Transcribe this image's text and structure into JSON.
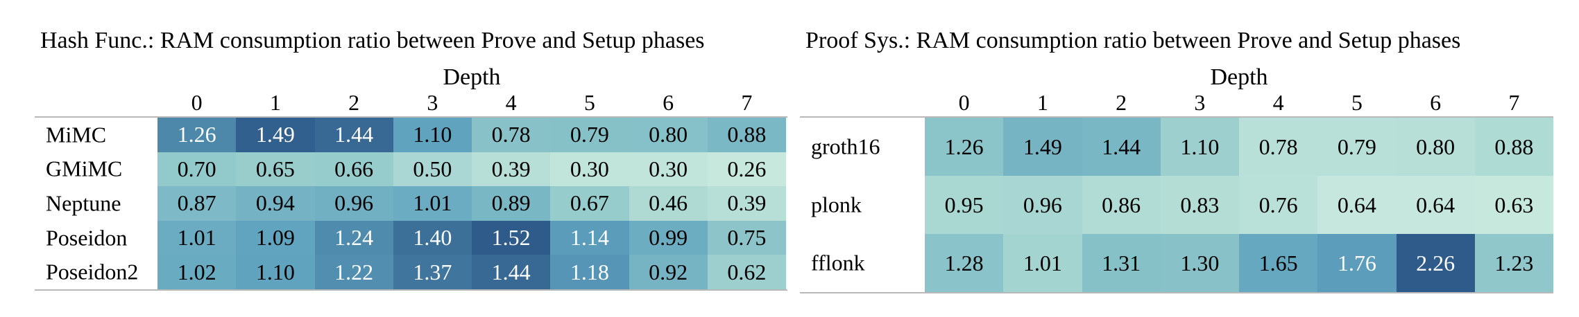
{
  "chart_data": [
    {
      "type": "heatmap",
      "title": "Hash Func.: RAM consumption ratio between Prove and Setup phases",
      "xlabel": "Depth",
      "ylabel": "",
      "x": [
        "0",
        "1",
        "2",
        "3",
        "4",
        "5",
        "6",
        "7"
      ],
      "y": [
        "MiMC",
        "GMiMC",
        "Neptune",
        "Poseidon",
        "Poseidon2"
      ],
      "values": [
        [
          1.26,
          1.49,
          1.44,
          1.1,
          0.78,
          0.79,
          0.8,
          0.88
        ],
        [
          0.7,
          0.65,
          0.66,
          0.5,
          0.39,
          0.3,
          0.3,
          0.26
        ],
        [
          0.87,
          0.94,
          0.96,
          1.01,
          0.89,
          0.67,
          0.46,
          0.39
        ],
        [
          1.01,
          1.09,
          1.24,
          1.4,
          1.52,
          1.14,
          0.99,
          0.75
        ],
        [
          1.02,
          1.1,
          1.22,
          1.37,
          1.44,
          1.18,
          0.92,
          0.62
        ]
      ],
      "value_format": "0.00",
      "colormap": [
        "#c6e8dd",
        "#95cbcb",
        "#5fa3bf",
        "#2f5b8a"
      ],
      "text_light_color": "#ffffff",
      "text_dark_color": "#000000"
    },
    {
      "type": "heatmap",
      "title": "Proof Sys.: RAM consumption ratio between Prove and Setup phases",
      "xlabel": "Depth",
      "ylabel": "",
      "x": [
        "0",
        "1",
        "2",
        "3",
        "4",
        "5",
        "6",
        "7"
      ],
      "y": [
        "groth16",
        "plonk",
        "fflonk"
      ],
      "values": [
        [
          1.26,
          1.49,
          1.44,
          1.1,
          0.78,
          0.79,
          0.8,
          0.88
        ],
        [
          0.95,
          0.96,
          0.86,
          0.83,
          0.76,
          0.64,
          0.64,
          0.63
        ],
        [
          1.28,
          1.01,
          1.31,
          1.3,
          1.65,
          1.76,
          2.26,
          1.23
        ]
      ],
      "value_format": "0.00",
      "colormap": [
        "#c6e8dd",
        "#95cbcb",
        "#5fa3bf",
        "#2f5b8a"
      ],
      "text_light_color": "#ffffff",
      "text_dark_color": "#000000"
    }
  ]
}
